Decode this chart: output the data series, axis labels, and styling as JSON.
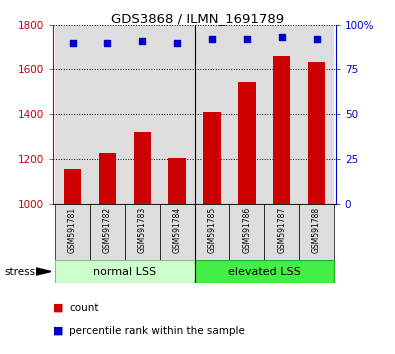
{
  "title": "GDS3868 / ILMN_1691789",
  "samples": [
    "GSM591781",
    "GSM591782",
    "GSM591783",
    "GSM591784",
    "GSM591785",
    "GSM591786",
    "GSM591787",
    "GSM591788"
  ],
  "counts": [
    1155,
    1225,
    1320,
    1205,
    1410,
    1545,
    1660,
    1635
  ],
  "percentile_ranks": [
    90,
    90,
    91,
    90,
    92,
    92,
    93,
    92
  ],
  "groups": [
    {
      "label": "normal LSS",
      "start": 0,
      "end": 4,
      "color": "#ccffcc",
      "edge_color": "#88bb88"
    },
    {
      "label": "elevated LSS",
      "start": 4,
      "end": 8,
      "color": "#44ee44",
      "edge_color": "#22aa22"
    }
  ],
  "bar_color": "#cc0000",
  "dot_color": "#0000cc",
  "left_ylim": [
    1000,
    1800
  ],
  "left_yticks": [
    1000,
    1200,
    1400,
    1600,
    1800
  ],
  "right_ylim": [
    0,
    100
  ],
  "right_yticks": [
    0,
    25,
    50,
    75,
    100
  ],
  "right_yticklabels": [
    "0",
    "25",
    "50",
    "75",
    "100%"
  ],
  "col_bg": "#dddddd",
  "stress_label": "stress",
  "legend_items": [
    {
      "color": "#cc0000",
      "label": "count"
    },
    {
      "color": "#0000cc",
      "label": "percentile rank within the sample"
    }
  ]
}
